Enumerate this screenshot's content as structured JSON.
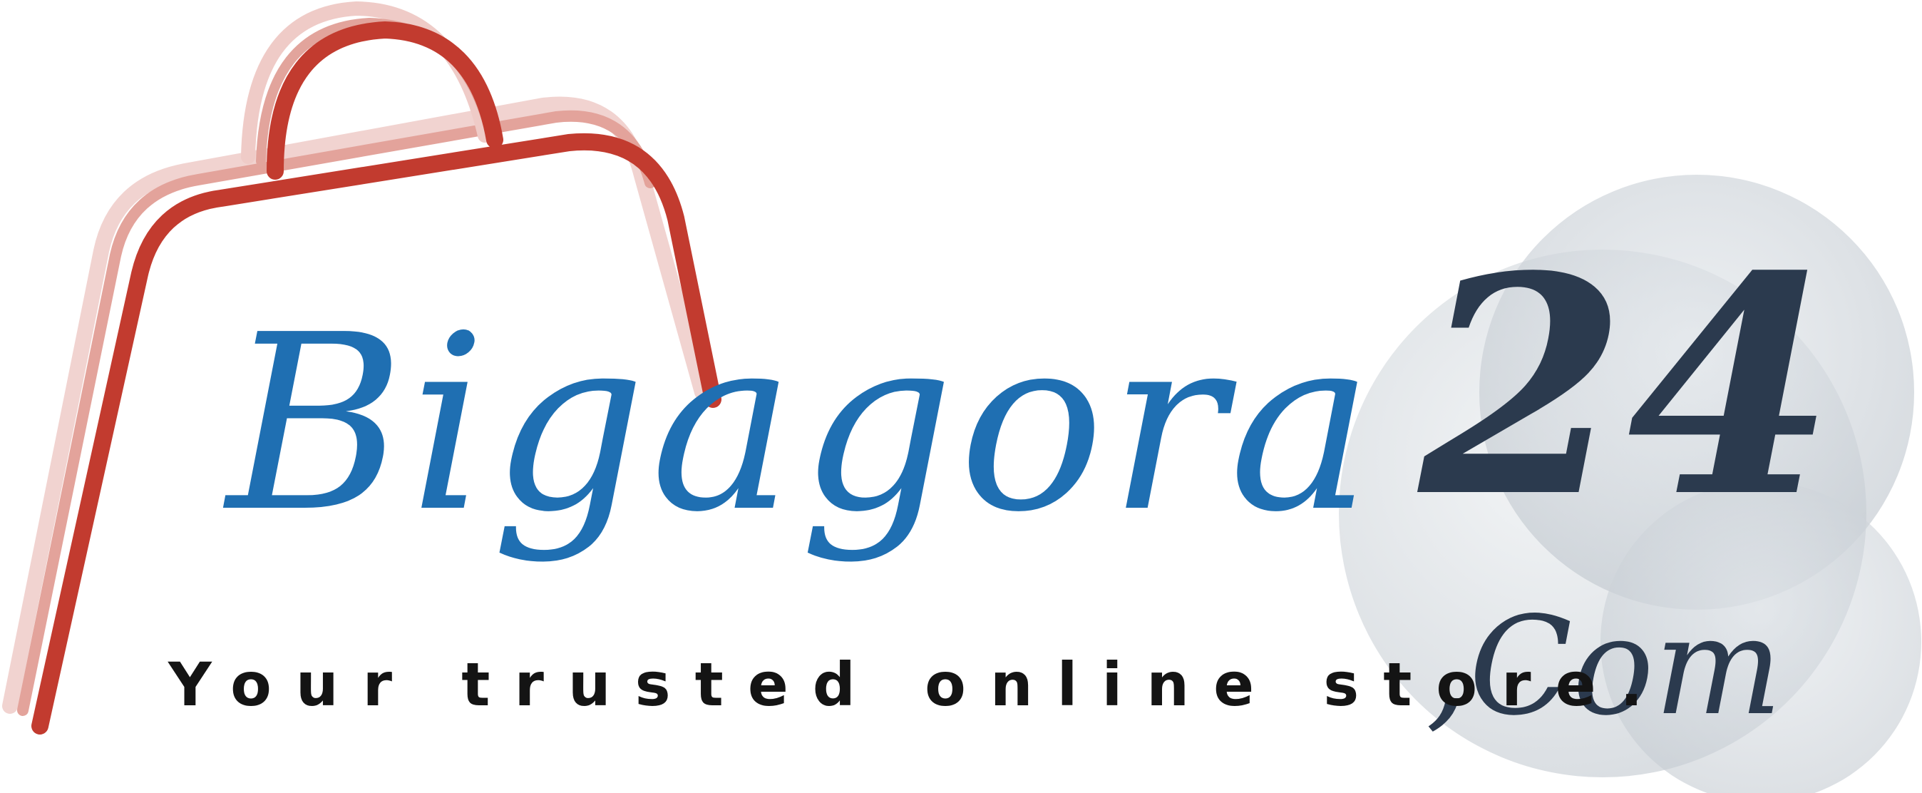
{
  "logo": {
    "brand_name": "Bigagora",
    "brand_number": "24",
    "domain_suffix": ",Com",
    "tagline": "Your trusted online store.",
    "icon": "shopping-bag-icon",
    "colors": {
      "bag_red": "#c23b2f",
      "bag_shadow": "#e8b3ae",
      "text_blue": "#1f6fb2",
      "text_dark": "#2b3a4e",
      "circle_gray": "#d3d8dd",
      "tagline_black": "#141414"
    }
  }
}
